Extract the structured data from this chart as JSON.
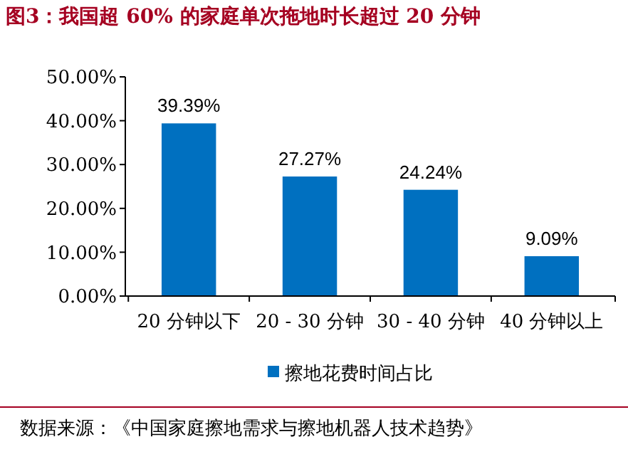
{
  "chart_data": {
    "type": "bar",
    "title": "图3：我国超 60% 的家庭单次拖地时长超过 20 分钟",
    "categories": [
      "20 分钟以下",
      "20 - 30 分钟",
      "30 - 40 分钟",
      "40 分钟以上"
    ],
    "series": [
      {
        "name": "擦地花费时间占比",
        "color": "#0070c0",
        "values": [
          39.39,
          27.27,
          24.24,
          9.09
        ],
        "value_labels": [
          "39.39%",
          "27.27%",
          "24.24%",
          "9.09%"
        ]
      }
    ],
    "ylim": [
      0,
      50
    ],
    "yticks": [
      {
        "value": 0,
        "label": "0.00%"
      },
      {
        "value": 10,
        "label": "10.00%"
      },
      {
        "value": 20,
        "label": "20.00%"
      },
      {
        "value": 30,
        "label": "30.00%"
      },
      {
        "value": 40,
        "label": "40.00%"
      },
      {
        "value": 50,
        "label": "50.00%"
      }
    ],
    "legend": "bottom",
    "grid": false,
    "annotations": [
      "数据来源：《中国家庭擦地需求与擦地机器人技术趋势》"
    ]
  }
}
